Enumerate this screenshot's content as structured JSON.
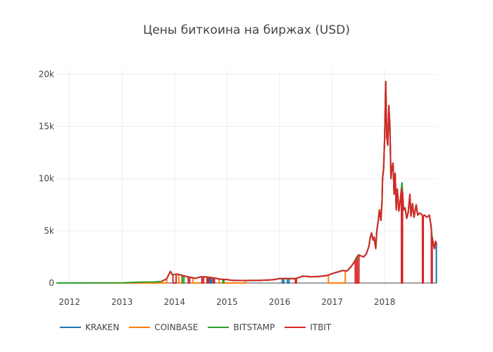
{
  "chart_data": {
    "type": "line",
    "title": "Цены биткоина на биржах (USD)",
    "xlabel": "",
    "ylabel": "",
    "x_range": [
      2011.75,
      2018.99
    ],
    "ylim": [
      -200,
      20500
    ],
    "x_ticks": [
      2012,
      2013,
      2014,
      2015,
      2016,
      2017,
      2018
    ],
    "x_tick_labels": [
      "2012",
      "2013",
      "2014",
      "2015",
      "2016",
      "2017",
      "2018"
    ],
    "y_ticks": [
      0,
      5000,
      10000,
      15000,
      20000
    ],
    "y_tick_labels": [
      "0",
      "5k",
      "10k",
      "15k",
      "20k"
    ],
    "grid": true,
    "legend_position": "bottom-left",
    "x_base": [
      2011.75,
      2012.0,
      2012.5,
      2013.0,
      2013.2,
      2013.4,
      2013.6,
      2013.75,
      2013.85,
      2013.92,
      2013.96,
      2014.05,
      2014.1,
      2014.2,
      2014.3,
      2014.4,
      2014.5,
      2014.6,
      2014.75,
      2014.9,
      2015.0,
      2015.1,
      2015.3,
      2015.6,
      2015.8,
      2015.9,
      2016.0,
      2016.3,
      2016.45,
      2016.6,
      2016.75,
      2016.92,
      2017.0,
      2017.1,
      2017.2,
      2017.28,
      2017.35,
      2017.42,
      2017.45,
      2017.5,
      2017.55,
      2017.6,
      2017.65,
      2017.7,
      2017.72,
      2017.75,
      2017.78,
      2017.8,
      2017.83,
      2017.85,
      2017.88,
      2017.9,
      2017.93,
      2017.95,
      2017.96,
      2017.98,
      2018.0,
      2018.02,
      2018.04,
      2018.06,
      2018.08,
      2018.1,
      2018.12,
      2018.14,
      2018.16,
      2018.18,
      2018.2,
      2018.22,
      2018.24,
      2018.27,
      2018.3,
      2018.33,
      2018.36,
      2018.39,
      2018.42,
      2018.45,
      2018.48,
      2018.5,
      2018.53,
      2018.56,
      2018.6,
      2018.63,
      2018.66,
      2018.7,
      2018.73,
      2018.76,
      2018.8,
      2018.85,
      2018.88,
      2018.9,
      2018.93,
      2018.95,
      2018.97,
      2018.99
    ],
    "y_base": [
      5,
      5,
      8,
      13,
      60,
      100,
      100,
      150,
      400,
      1100,
      800,
      850,
      800,
      650,
      550,
      450,
      600,
      580,
      480,
      350,
      330,
      250,
      240,
      250,
      290,
      330,
      430,
      420,
      660,
      600,
      620,
      740,
      900,
      1050,
      1200,
      1150,
      1500,
      2000,
      2300,
      2700,
      2600,
      2500,
      2800,
      3500,
      4200,
      4800,
      4100,
      4400,
      3300,
      5000,
      6000,
      7000,
      6000,
      7800,
      10000,
      11000,
      14000,
      19300,
      14000,
      13200,
      17000,
      15000,
      10000,
      11000,
      11500,
      8500,
      10500,
      7000,
      9000,
      6900,
      8000,
      9600,
      7000,
      7200,
      6200,
      6800,
      8500,
      6400,
      7600,
      6300,
      7500,
      6500,
      6700,
      6600,
      6400,
      6500,
      6300,
      6500,
      5600,
      4500,
      3700,
      3300,
      4000,
      3700
    ],
    "series": [
      {
        "name": "KRAKEN",
        "color": "#1f77b4",
        "start": 2013.75,
        "drops": [
          [
            2014.64,
            2014.66
          ],
          [
            2014.68,
            2014.7
          ],
          [
            2014.74,
            2014.76
          ],
          [
            2016.05,
            2016.08
          ],
          [
            2016.15,
            2016.18
          ],
          [
            2018.985,
            2018.99
          ]
        ]
      },
      {
        "name": "COINBASE",
        "color": "#ff7f0e",
        "start": 2011.75,
        "drops": [
          [
            2011.75,
            2013.85
          ],
          [
            2014.08,
            2014.14
          ],
          [
            2014.35,
            2014.55
          ],
          [
            2014.85,
            2015.35
          ],
          [
            2016.93,
            2017.25
          ],
          [
            2018.32,
            2018.34
          ]
        ]
      },
      {
        "name": "BITSTAMP",
        "color": "#2ca02c",
        "start": 2011.75,
        "drops": [
          [
            2014.15,
            2014.18
          ],
          [
            2014.92,
            2014.94
          ]
        ]
      },
      {
        "name": "ITBIT",
        "color": "#d62728",
        "start": 2013.75,
        "drops": [
          [
            2013.97,
            2014.03
          ],
          [
            2014.26,
            2014.29
          ],
          [
            2014.52,
            2014.55
          ],
          [
            2014.62,
            2014.65
          ],
          [
            2014.73,
            2014.75
          ],
          [
            2016.3,
            2016.32
          ],
          [
            2017.44,
            2017.47
          ],
          [
            2017.48,
            2017.51
          ],
          [
            2018.32,
            2018.34
          ],
          [
            2018.72,
            2018.735
          ],
          [
            2018.89,
            2018.905
          ]
        ]
      }
    ]
  }
}
